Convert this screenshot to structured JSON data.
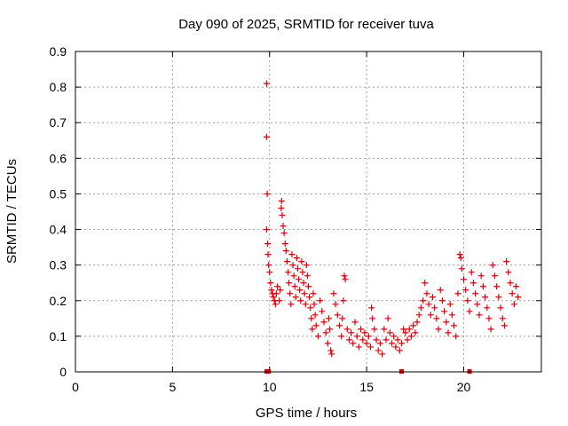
{
  "chart_data": {
    "type": "scatter",
    "title": "Day 090 of 2025, SRMTID for receiver tuva",
    "xlabel": "GPS time / hours",
    "ylabel": "SRMTID / TECUs",
    "xlim": [
      0,
      24
    ],
    "ylim": [
      0,
      0.9
    ],
    "xticks": [
      0,
      5,
      10,
      15,
      20
    ],
    "xtick_labels": [
      "0",
      "5",
      "10",
      "15",
      "20"
    ],
    "yticks": [
      0,
      0.1,
      0.2,
      0.3,
      0.4,
      0.5,
      0.6,
      0.7,
      0.8,
      0.9
    ],
    "ytick_labels": [
      "0",
      "0.1",
      "0.2",
      "0.3",
      "0.4",
      "0.5",
      "0.6",
      "0.7",
      "0.8",
      "0.9"
    ],
    "grid": true,
    "marker_color": "#e00000",
    "marker": "plus",
    "series": [
      {
        "name": "SRMTID",
        "points": [
          [
            9.85,
            0.81
          ],
          [
            9.85,
            0.66
          ],
          [
            9.88,
            0.5
          ],
          [
            9.85,
            0.4
          ],
          [
            9.9,
            0.36
          ],
          [
            9.92,
            0.33
          ],
          [
            9.95,
            0.3
          ],
          [
            10.0,
            0.28
          ],
          [
            10.05,
            0.25
          ],
          [
            10.1,
            0.23
          ],
          [
            10.15,
            0.22
          ],
          [
            10.2,
            0.21
          ],
          [
            10.25,
            0.2
          ],
          [
            10.3,
            0.19
          ],
          [
            10.35,
            0.22
          ],
          [
            10.4,
            0.24
          ],
          [
            10.5,
            0.2
          ],
          [
            10.55,
            0.23
          ],
          [
            10.6,
            0.46
          ],
          [
            10.62,
            0.48
          ],
          [
            10.65,
            0.44
          ],
          [
            10.7,
            0.41
          ],
          [
            10.75,
            0.39
          ],
          [
            10.8,
            0.36
          ],
          [
            10.85,
            0.34
          ],
          [
            10.9,
            0.31
          ],
          [
            10.95,
            0.28
          ],
          [
            11.0,
            0.25
          ],
          [
            11.05,
            0.22
          ],
          [
            11.1,
            0.19
          ],
          [
            11.15,
            0.33
          ],
          [
            11.2,
            0.3
          ],
          [
            11.25,
            0.27
          ],
          [
            11.3,
            0.24
          ],
          [
            11.35,
            0.21
          ],
          [
            11.4,
            0.32
          ],
          [
            11.45,
            0.29
          ],
          [
            11.5,
            0.26
          ],
          [
            11.55,
            0.23
          ],
          [
            11.6,
            0.2
          ],
          [
            11.65,
            0.31
          ],
          [
            11.7,
            0.28
          ],
          [
            11.75,
            0.25
          ],
          [
            11.8,
            0.22
          ],
          [
            11.85,
            0.19
          ],
          [
            11.9,
            0.3
          ],
          [
            11.95,
            0.27
          ],
          [
            12.0,
            0.24
          ],
          [
            12.05,
            0.21
          ],
          [
            12.1,
            0.18
          ],
          [
            12.15,
            0.15
          ],
          [
            12.2,
            0.12
          ],
          [
            12.25,
            0.22
          ],
          [
            12.3,
            0.19
          ],
          [
            12.35,
            0.16
          ],
          [
            12.4,
            0.13
          ],
          [
            12.5,
            0.1
          ],
          [
            12.6,
            0.2
          ],
          [
            12.7,
            0.17
          ],
          [
            12.8,
            0.14
          ],
          [
            12.9,
            0.11
          ],
          [
            13.0,
            0.08
          ],
          [
            13.05,
            0.15
          ],
          [
            13.1,
            0.12
          ],
          [
            13.15,
            0.06
          ],
          [
            13.2,
            0.05
          ],
          [
            13.3,
            0.22
          ],
          [
            13.4,
            0.19
          ],
          [
            13.5,
            0.16
          ],
          [
            13.6,
            0.13
          ],
          [
            13.7,
            0.1
          ],
          [
            13.75,
            0.15
          ],
          [
            13.8,
            0.2
          ],
          [
            13.85,
            0.27
          ],
          [
            13.9,
            0.26
          ],
          [
            14.0,
            0.12
          ],
          [
            14.1,
            0.09
          ],
          [
            14.2,
            0.11
          ],
          [
            14.3,
            0.08
          ],
          [
            14.4,
            0.14
          ],
          [
            14.5,
            0.1
          ],
          [
            14.6,
            0.07
          ],
          [
            14.7,
            0.12
          ],
          [
            14.8,
            0.09
          ],
          [
            14.9,
            0.11
          ],
          [
            15.0,
            0.08
          ],
          [
            15.1,
            0.1
          ],
          [
            15.2,
            0.07
          ],
          [
            15.25,
            0.18
          ],
          [
            15.3,
            0.15
          ],
          [
            15.4,
            0.12
          ],
          [
            15.5,
            0.09
          ],
          [
            15.6,
            0.06
          ],
          [
            15.7,
            0.08
          ],
          [
            15.8,
            0.05
          ],
          [
            15.9,
            0.12
          ],
          [
            16.0,
            0.09
          ],
          [
            16.1,
            0.15
          ],
          [
            16.2,
            0.11
          ],
          [
            16.3,
            0.08
          ],
          [
            16.4,
            0.1
          ],
          [
            16.5,
            0.07
          ],
          [
            16.6,
            0.09
          ],
          [
            16.7,
            0.06
          ],
          [
            16.8,
            0.08
          ],
          [
            16.9,
            0.12
          ],
          [
            17.0,
            0.11
          ],
          [
            17.1,
            0.09
          ],
          [
            17.2,
            0.12
          ],
          [
            17.3,
            0.1
          ],
          [
            17.4,
            0.13
          ],
          [
            17.5,
            0.11
          ],
          [
            17.6,
            0.14
          ],
          [
            17.7,
            0.16
          ],
          [
            17.8,
            0.18
          ],
          [
            17.9,
            0.2
          ],
          [
            18.0,
            0.25
          ],
          [
            18.1,
            0.22
          ],
          [
            18.2,
            0.19
          ],
          [
            18.3,
            0.16
          ],
          [
            18.4,
            0.21
          ],
          [
            18.5,
            0.18
          ],
          [
            18.6,
            0.15
          ],
          [
            18.7,
            0.12
          ],
          [
            18.8,
            0.23
          ],
          [
            18.9,
            0.2
          ],
          [
            19.0,
            0.17
          ],
          [
            19.1,
            0.14
          ],
          [
            19.2,
            0.11
          ],
          [
            19.3,
            0.19
          ],
          [
            19.4,
            0.16
          ],
          [
            19.5,
            0.13
          ],
          [
            19.6,
            0.1
          ],
          [
            19.7,
            0.22
          ],
          [
            19.8,
            0.33
          ],
          [
            19.85,
            0.32
          ],
          [
            19.9,
            0.29
          ],
          [
            20.0,
            0.26
          ],
          [
            20.1,
            0.23
          ],
          [
            20.2,
            0.2
          ],
          [
            20.3,
            0.17
          ],
          [
            20.4,
            0.28
          ],
          [
            20.5,
            0.25
          ],
          [
            20.6,
            0.22
          ],
          [
            20.7,
            0.19
          ],
          [
            20.8,
            0.16
          ],
          [
            20.9,
            0.27
          ],
          [
            21.0,
            0.24
          ],
          [
            21.1,
            0.21
          ],
          [
            21.2,
            0.18
          ],
          [
            21.3,
            0.15
          ],
          [
            21.4,
            0.12
          ],
          [
            21.5,
            0.3
          ],
          [
            21.6,
            0.27
          ],
          [
            21.7,
            0.24
          ],
          [
            21.8,
            0.21
          ],
          [
            21.9,
            0.18
          ],
          [
            22.0,
            0.15
          ],
          [
            22.1,
            0.13
          ],
          [
            22.2,
            0.31
          ],
          [
            22.3,
            0.28
          ],
          [
            22.4,
            0.25
          ],
          [
            22.5,
            0.22
          ],
          [
            22.6,
            0.19
          ],
          [
            22.7,
            0.24
          ],
          [
            22.8,
            0.21
          ]
        ]
      }
    ],
    "baseline_marks_x": [
      9.85,
      9.95,
      16.8,
      20.3
    ]
  }
}
